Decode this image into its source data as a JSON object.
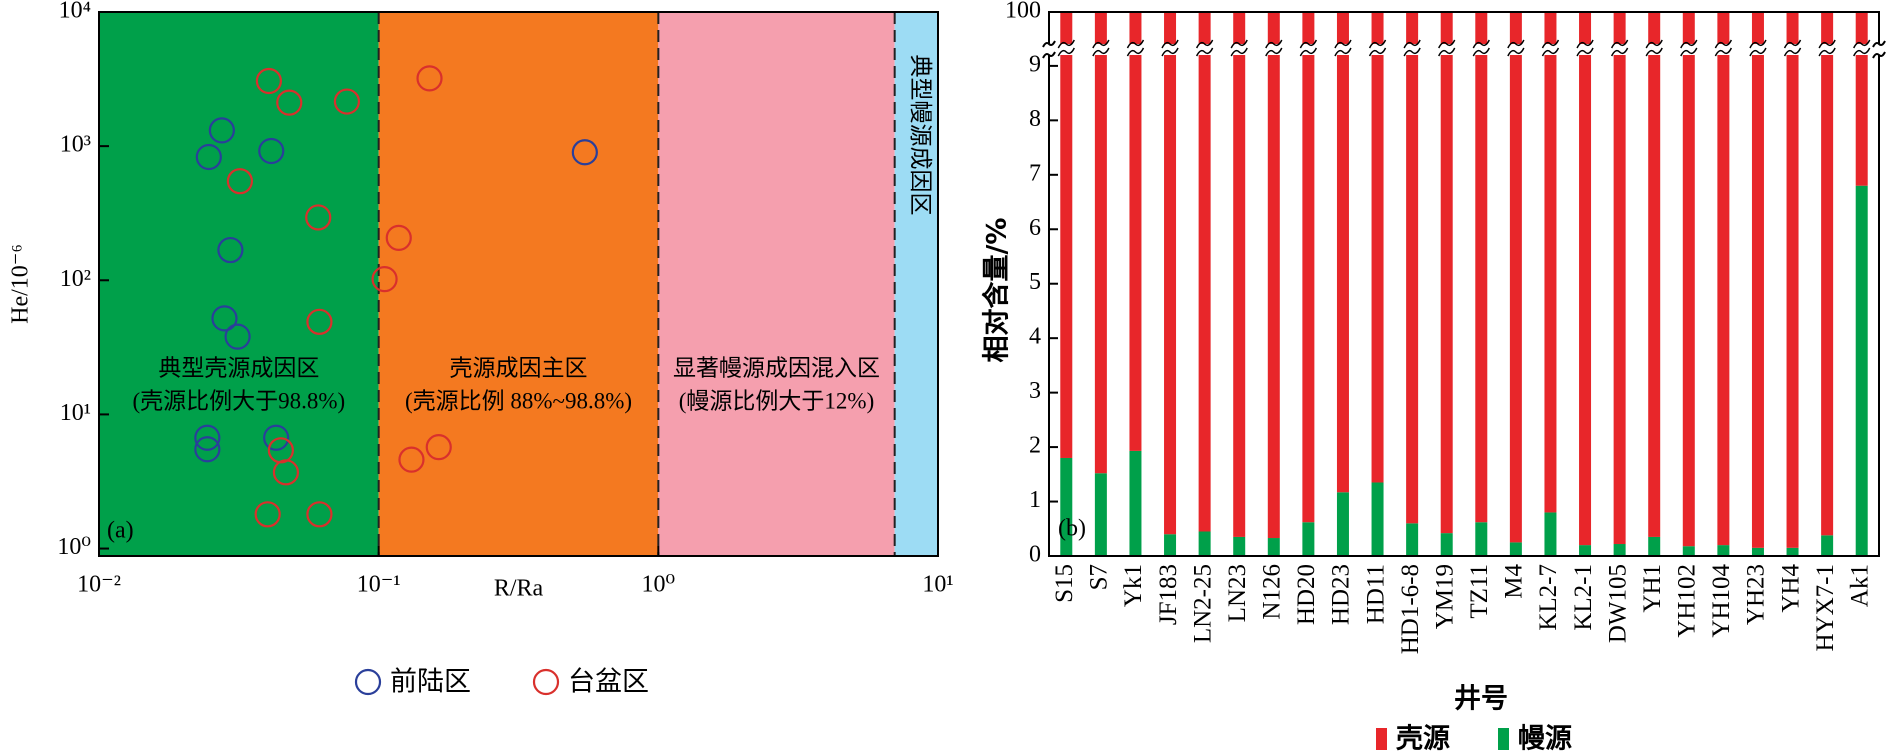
{
  "chart_data": [
    {
      "type": "scatter",
      "panel_label": "(a)",
      "x_label": "R/Ra",
      "y_label": "He/10⁻⁶",
      "log_x": true,
      "log_y": true,
      "xlim": [
        0.01,
        10
      ],
      "ylim": [
        0.88,
        10000
      ],
      "xticks": [
        {
          "value": 0.01,
          "label": "10⁻²"
        },
        {
          "value": 0.1,
          "label": "10⁻¹"
        },
        {
          "value": 1,
          "label": "10⁰"
        },
        {
          "value": 10,
          "label": "10¹"
        }
      ],
      "yticks": [
        {
          "value": 1,
          "label": "10⁰"
        },
        {
          "value": 10,
          "label": "10¹"
        },
        {
          "value": 100,
          "label": "10²"
        },
        {
          "value": 1000,
          "label": "10³"
        },
        {
          "value": 10000,
          "label": "10⁴"
        }
      ],
      "regions": [
        {
          "from": 0.01,
          "to": 0.1,
          "color": "#00a04a",
          "label": [
            "典型壳源成因区",
            "(壳源比例大于98.8%)"
          ]
        },
        {
          "from": 0.1,
          "to": 1,
          "color": "#f47920",
          "label": [
            "壳源成因主区",
            "(壳源比例 88%~98.8%)"
          ]
        },
        {
          "from": 1,
          "to": 7,
          "color": "#f59fae",
          "label": [
            "显著幔源成因混入区",
            "(幔源比例大于12%)"
          ]
        },
        {
          "from": 7,
          "to": 10,
          "color": "#9ddcf4",
          "label": [
            "典型幔源成因区"
          ]
        }
      ],
      "series": [
        {
          "name": "前陆区",
          "color": "#2a3f9a",
          "x": [
            0.0275,
            0.0247,
            0.0413,
            0.546,
            0.0295,
            0.0281,
            0.0313,
            0.0244,
            0.0244,
            0.043
          ],
          "values": [
            1310,
            830,
            920,
            900,
            168,
            52,
            38,
            6.7,
            5.5,
            6.7
          ]
        },
        {
          "name": "台盆区",
          "color": "#d9302c",
          "x": [
            0.0405,
            0.0479,
            0.077,
            0.152,
            0.0319,
            0.0608,
            0.118,
            0.105,
            0.0614,
            0.0447,
            0.0466,
            0.0401,
            0.0614,
            0.131,
            0.164
          ],
          "values": [
            3060,
            2110,
            2150,
            3200,
            548,
            294,
            207,
            102,
            49,
            5.4,
            3.7,
            1.8,
            1.8,
            4.6,
            5.7
          ]
        }
      ]
    },
    {
      "type": "stacked_bar",
      "panel_label": "(b)",
      "x_label": "井号",
      "y_label": "相对含量/%",
      "ylim": [
        0,
        100
      ],
      "ybreak": [
        9.2,
        99.6
      ],
      "yticks": [
        0,
        1,
        2,
        3,
        4,
        5,
        6,
        7,
        8,
        9,
        100
      ],
      "categories": [
        "S15",
        "S7",
        "Yk1",
        "JF183",
        "LN2-25",
        "LN23",
        "N126",
        "HD20",
        "HD23",
        "HD11",
        "HD1-6-8",
        "YM19",
        "TZ11",
        "M4",
        "KL2-7",
        "KL2-1",
        "DW105",
        "YH1",
        "YH102",
        "YH104",
        "YH23",
        "YH4",
        "HYX7-1",
        "Ak1"
      ],
      "series": [
        {
          "name": "幔源",
          "color": "#00a04a",
          "values": [
            1.8,
            1.52,
            1.93,
            0.4,
            0.45,
            0.35,
            0.33,
            0.62,
            1.17,
            1.35,
            0.6,
            0.42,
            0.62,
            0.25,
            0.8,
            0.2,
            0.22,
            0.35,
            0.18,
            0.2,
            0.15,
            0.15,
            0.38,
            6.8
          ]
        },
        {
          "name": "壳源",
          "color": "#e8262a",
          "values": [
            98.2,
            98.48,
            98.07,
            99.6,
            99.55,
            99.65,
            99.67,
            99.38,
            98.83,
            98.65,
            99.4,
            99.58,
            99.38,
            99.75,
            99.2,
            99.8,
            99.78,
            99.65,
            99.82,
            99.8,
            99.85,
            99.85,
            99.62,
            93.2
          ]
        }
      ],
      "legend_order": [
        1,
        0
      ]
    }
  ]
}
